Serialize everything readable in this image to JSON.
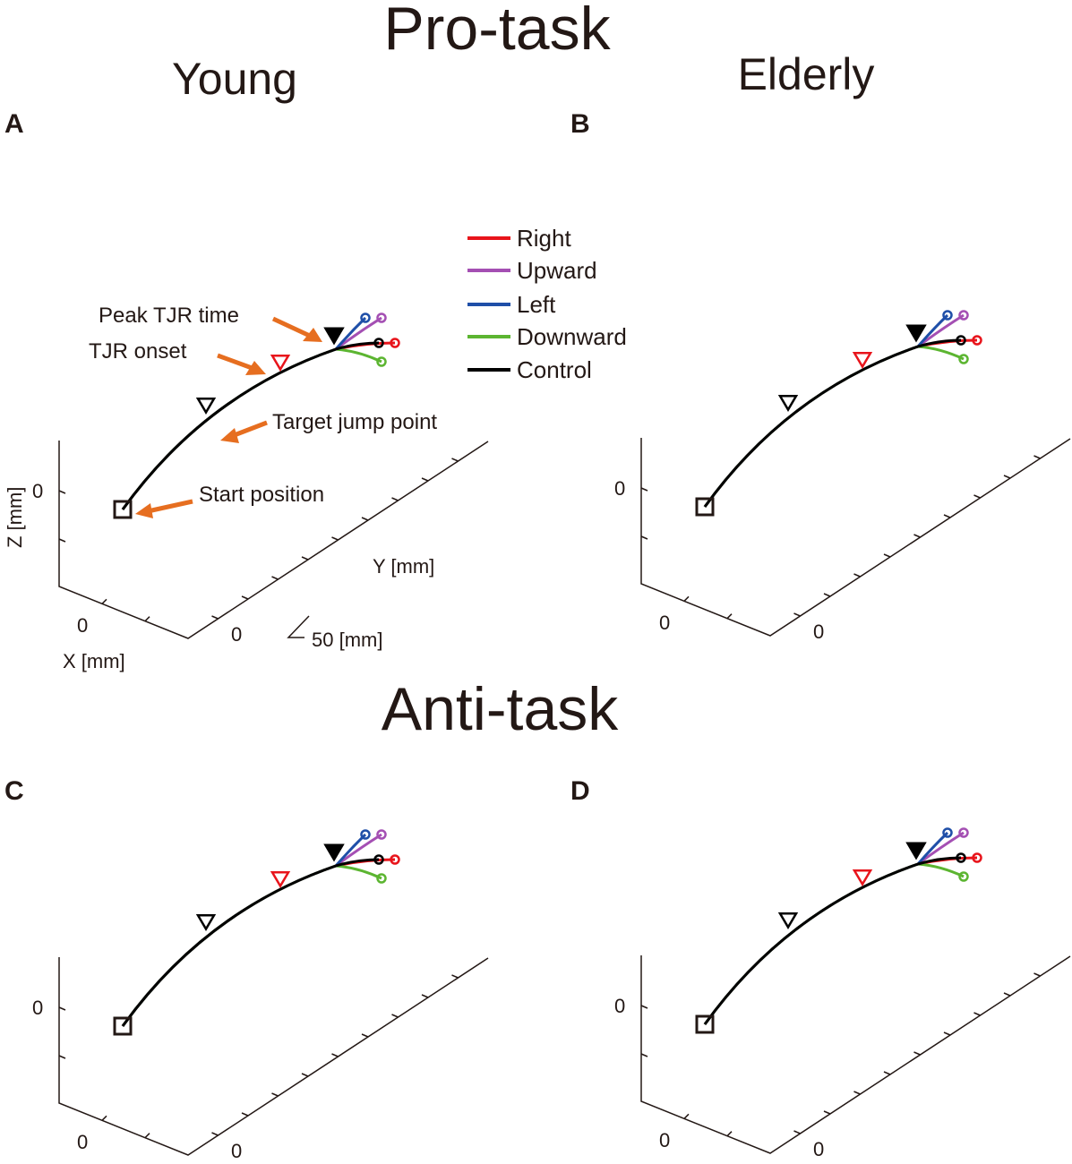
{
  "figure": {
    "title_pro": "Pro-task",
    "title_anti": "Anti-task",
    "col_young": "Young",
    "col_elderly": "Elderly"
  },
  "colors": {
    "text": "#231815",
    "Right": "#e8141b",
    "Upward": "#a44fb3",
    "Left": "#1f4fa8",
    "Downward": "#5cb531",
    "Control": "#000000",
    "arrow": "#e66e20",
    "tjr_onset": "#e8141b"
  },
  "legend": {
    "items": [
      {
        "name": "Right",
        "color": "#e8141b"
      },
      {
        "name": "Upward",
        "color": "#a44fb3"
      },
      {
        "name": "Left",
        "color": "#1f4fa8"
      },
      {
        "name": "Downward",
        "color": "#5cb531"
      },
      {
        "name": "Control",
        "color": "#000000"
      }
    ]
  },
  "annotations": {
    "peak_tjr": "Peak TJR time",
    "tjr_onset": "TJR onset",
    "target_jump": "Target jump point",
    "start_position": "Start position"
  },
  "axes": {
    "z_label": "Z [mm]",
    "y_label": "Y [mm]",
    "x_label": "X [mm]",
    "scale_bar": "50 [mm]",
    "tick_zero": "0"
  },
  "chart_data": [
    {
      "panel": "A",
      "type": "line",
      "task": "Pro-task",
      "group": "Young",
      "series": [
        "Right",
        "Upward",
        "Left",
        "Downward",
        "Control"
      ],
      "endpoints": {
        "Right": [
          0,
          110,
          5
        ],
        "Upward": [
          0,
          85,
          25
        ],
        "Left": [
          0,
          55,
          25
        ],
        "Downward": [
          0,
          85,
          -10
        ],
        "Control": [
          0,
          80,
          5
        ]
      },
      "events": [
        "Target jump point",
        "TJR onset",
        "Peak TJR time"
      ],
      "xlabel": "X [mm]",
      "ylabel": "Y [mm]",
      "zlabel": "Z [mm]",
      "scale_mm": 50
    },
    {
      "panel": "B",
      "type": "line",
      "task": "Pro-task",
      "group": "Elderly",
      "series": [
        "Right",
        "Upward",
        "Left",
        "Downward",
        "Control"
      ],
      "endpoints": {
        "Right": [
          0,
          110,
          5
        ],
        "Upward": [
          0,
          85,
          25
        ],
        "Left": [
          0,
          55,
          25
        ],
        "Downward": [
          0,
          85,
          -10
        ],
        "Control": [
          0,
          80,
          5
        ]
      },
      "events": [
        "Target jump point",
        "TJR onset",
        "Peak TJR time"
      ],
      "scale_mm": 50
    },
    {
      "panel": "C",
      "type": "line",
      "task": "Anti-task",
      "group": "Young",
      "series": [
        "Right",
        "Upward",
        "Left",
        "Downward",
        "Control"
      ],
      "endpoints": {
        "Right": [
          0,
          110,
          5
        ],
        "Upward": [
          0,
          85,
          25
        ],
        "Left": [
          0,
          55,
          25
        ],
        "Downward": [
          0,
          85,
          -10
        ],
        "Control": [
          0,
          80,
          5
        ]
      },
      "events": [
        "Target jump point",
        "TJR onset",
        "Peak TJR time"
      ],
      "scale_mm": 50
    },
    {
      "panel": "D",
      "type": "line",
      "task": "Anti-task",
      "group": "Elderly",
      "series": [
        "Right",
        "Upward",
        "Left",
        "Downward",
        "Control"
      ],
      "endpoints": {
        "Right": [
          0,
          110,
          5
        ],
        "Upward": [
          0,
          85,
          25
        ],
        "Left": [
          0,
          55,
          25
        ],
        "Downward": [
          0,
          85,
          -10
        ],
        "Control": [
          0,
          80,
          5
        ]
      },
      "events": [
        "Target jump point",
        "TJR onset",
        "Peak TJR time"
      ],
      "scale_mm": 50
    }
  ]
}
